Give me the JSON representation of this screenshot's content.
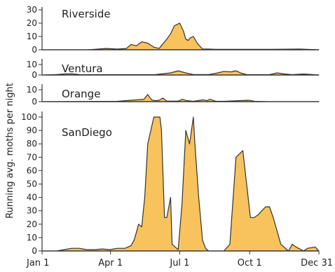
{
  "chart_data": {
    "type": "area",
    "ylabel": "Running avg. moths per night",
    "x_ticks": [
      {
        "label": "Jan 1",
        "day": 1
      },
      {
        "label": "Apr 1",
        "day": 91
      },
      {
        "label": "Jul 1",
        "day": 182
      },
      {
        "label": "Oct 1",
        "day": 274
      },
      {
        "label": "Dec 31",
        "day": 365
      }
    ],
    "xlim": [
      1,
      365
    ],
    "fill_color": "#F8C35C",
    "line_color": "#333333",
    "panels": [
      {
        "name": "Riverside",
        "ylim": [
          0,
          30
        ],
        "y_ticks": [
          0,
          10,
          20,
          30
        ],
        "x": [
          1,
          60,
          75,
          85,
          100,
          112,
          118,
          125,
          132,
          140,
          148,
          155,
          165,
          170,
          175,
          182,
          187,
          190,
          193,
          196,
          200,
          205,
          212,
          220,
          230,
          260,
          300,
          340,
          365
        ],
        "y": [
          0,
          0,
          0.5,
          1,
          0.5,
          1,
          4,
          3,
          6,
          5,
          2,
          1,
          8,
          12,
          18,
          20,
          14,
          8,
          7,
          9,
          10,
          5,
          0.5,
          0.5,
          0.3,
          0.3,
          0.3,
          0.5,
          0
        ]
      },
      {
        "name": "Ventura",
        "ylim": [
          0,
          10
        ],
        "y_ticks": [
          0,
          10
        ],
        "x": [
          1,
          20,
          30,
          40,
          50,
          60,
          120,
          150,
          170,
          180,
          190,
          200,
          220,
          232,
          240,
          250,
          255,
          258,
          262,
          270,
          300,
          310,
          320,
          330,
          345,
          365
        ],
        "y": [
          0,
          0.5,
          1,
          1.2,
          0.5,
          0.3,
          0.3,
          0.4,
          2,
          4,
          2,
          0.5,
          0.5,
          2,
          3.5,
          3,
          4,
          3.5,
          2,
          0.3,
          0.3,
          2,
          1,
          0.3,
          1,
          0
        ]
      },
      {
        "name": "Orange",
        "ylim": [
          0,
          10
        ],
        "y_ticks": [
          0,
          10
        ],
        "x": [
          1,
          100,
          135,
          140,
          145,
          150,
          155,
          160,
          165,
          180,
          186,
          190,
          200,
          213,
          218,
          222,
          226,
          230,
          240,
          265,
          270,
          275,
          280,
          300,
          365
        ],
        "y": [
          0,
          0.3,
          2,
          6,
          1.5,
          0.8,
          1.2,
          3,
          0.5,
          0.5,
          2,
          1,
          0.3,
          1.5,
          0.8,
          2,
          1,
          0.3,
          0.3,
          1,
          1.2,
          1,
          0.3,
          0,
          0
        ]
      },
      {
        "name": "SanDiego",
        "ylim": [
          0,
          100
        ],
        "y_ticks": [
          0,
          10,
          20,
          30,
          40,
          50,
          60,
          70,
          80,
          90,
          100
        ],
        "x": [
          1,
          20,
          30,
          40,
          50,
          60,
          70,
          80,
          90,
          100,
          110,
          118,
          122,
          125,
          128,
          132,
          136,
          140,
          148,
          152,
          156,
          158,
          162,
          165,
          170,
          172,
          180,
          185,
          190,
          195,
          200,
          202,
          207,
          212,
          216,
          220,
          230,
          240,
          248,
          256,
          265,
          270,
          275,
          280,
          285,
          290,
          295,
          300,
          305,
          315,
          325,
          330,
          335,
          345,
          350,
          360,
          365
        ],
        "y": [
          0,
          0,
          1,
          2,
          2,
          1,
          1,
          1.5,
          1,
          2,
          2,
          4,
          8,
          14,
          20,
          18,
          40,
          80,
          100,
          100,
          100,
          90,
          25,
          25,
          40,
          5,
          1,
          35,
          90,
          80,
          100,
          80,
          40,
          8,
          2,
          0,
          0,
          0,
          5,
          70,
          75,
          50,
          25,
          25,
          27,
          30,
          33,
          33,
          25,
          5,
          0,
          5,
          3,
          0,
          2,
          3,
          0
        ]
      }
    ]
  }
}
